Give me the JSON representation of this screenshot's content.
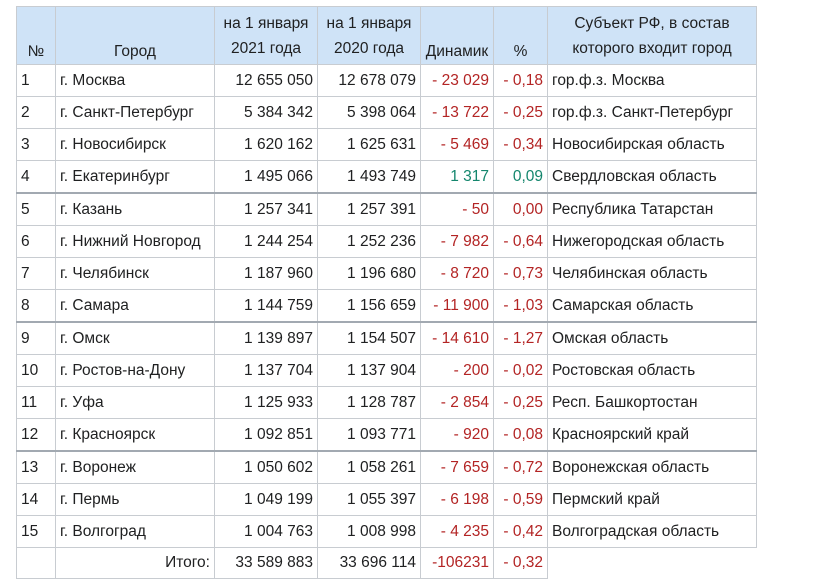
{
  "table": {
    "headers": {
      "num": "№",
      "city": "Город",
      "pop2021": [
        "на 1 января",
        "2021 года"
      ],
      "pop2020": [
        "на 1 января",
        "2020 года"
      ],
      "dynamic": "Динамик",
      "percent": "%",
      "region": [
        "Субъект РФ, в состав",
        "которого входит город"
      ]
    },
    "rows": [
      {
        "num": "1",
        "city": "г. Москва",
        "pop2021": "12 655 050",
        "pop2020": "12 678 079",
        "dyn": "- 23 029",
        "pct": "- 0,18",
        "region": "гор.ф.з. Москва",
        "trend": "neg"
      },
      {
        "num": "2",
        "city": "г. Санкт-Петербург",
        "pop2021": "5 384 342",
        "pop2020": "5 398 064",
        "dyn": "- 13 722",
        "pct": "- 0,25",
        "region": "гор.ф.з. Санкт-Петербург",
        "trend": "neg"
      },
      {
        "num": "3",
        "city": "г. Новосибирск",
        "pop2021": "1 620 162",
        "pop2020": "1 625 631",
        "dyn": "- 5 469",
        "pct": "- 0,34",
        "region": "Новосибирская область",
        "trend": "neg"
      },
      {
        "num": "4",
        "city": "г. Екатеринбург",
        "pop2021": "1 495 066",
        "pop2020": "1 493 749",
        "dyn": "1 317",
        "pct": "0,09",
        "region": "Свердловская область",
        "trend": "pos"
      },
      {
        "num": "5",
        "city": "г. Казань",
        "pop2021": "1 257 341",
        "pop2020": "1 257 391",
        "dyn": "- 50",
        "pct": "0,00",
        "region": "Республика Татарстан",
        "trend": "neg"
      },
      {
        "num": "6",
        "city": "г. Нижний Новгород",
        "pop2021": "1 244 254",
        "pop2020": "1 252 236",
        "dyn": "- 7 982",
        "pct": "- 0,64",
        "region": "Нижегородская область",
        "trend": "neg"
      },
      {
        "num": "7",
        "city": "г. Челябинск",
        "pop2021": "1 187 960",
        "pop2020": "1 196 680",
        "dyn": "- 8 720",
        "pct": "- 0,73",
        "region": "Челябинская область",
        "trend": "neg"
      },
      {
        "num": "8",
        "city": "г. Самара",
        "pop2021": "1 144 759",
        "pop2020": "1 156 659",
        "dyn": "- 11 900",
        "pct": "- 1,03",
        "region": "Самарская область",
        "trend": "neg"
      },
      {
        "num": "9",
        "city": "г. Омск",
        "pop2021": "1 139 897",
        "pop2020": "1 154 507",
        "dyn": "- 14 610",
        "pct": "- 1,27",
        "region": "Омская область",
        "trend": "neg"
      },
      {
        "num": "10",
        "city": "г. Ростов-на-Дону",
        "pop2021": "1 137 704",
        "pop2020": "1 137 904",
        "dyn": "- 200",
        "pct": "- 0,02",
        "region": "Ростовская область",
        "trend": "neg"
      },
      {
        "num": "11",
        "city": "г. Уфа",
        "pop2021": "1 125 933",
        "pop2020": "1 128 787",
        "dyn": "- 2 854",
        "pct": "- 0,25",
        "region": "Респ. Башкортостан",
        "trend": "neg"
      },
      {
        "num": "12",
        "city": "г. Красноярск",
        "pop2021": "1 092 851",
        "pop2020": "1 093 771",
        "dyn": "- 920",
        "pct": "- 0,08",
        "region": "Красноярский край",
        "trend": "neg"
      },
      {
        "num": "13",
        "city": "г. Воронеж",
        "pop2021": "1 050 602",
        "pop2020": "1 058 261",
        "dyn": "- 7 659",
        "pct": "- 0,72",
        "region": "Воронежская область",
        "trend": "neg"
      },
      {
        "num": "14",
        "city": "г. Пермь",
        "pop2021": "1 049 199",
        "pop2020": "1 055 397",
        "dyn": "- 6 198",
        "pct": "- 0,59",
        "region": "Пермский край",
        "trend": "neg"
      },
      {
        "num": "15",
        "city": "г. Волгоград",
        "pop2021": "1 004 763",
        "pop2020": "1 008 998",
        "dyn": "- 4 235",
        "pct": "- 0,42",
        "region": "Волгоградская область",
        "trend": "neg"
      }
    ],
    "total": {
      "label": "Итого:",
      "pop2021": "33 589 883",
      "pop2020": "33 696 114",
      "dyn": "-106231",
      "pct": "- 0,32"
    },
    "colors": {
      "header_bg": "#cfe3f7",
      "negative": "#b32424",
      "positive": "#14866d",
      "border": "#c8ccd1"
    }
  }
}
